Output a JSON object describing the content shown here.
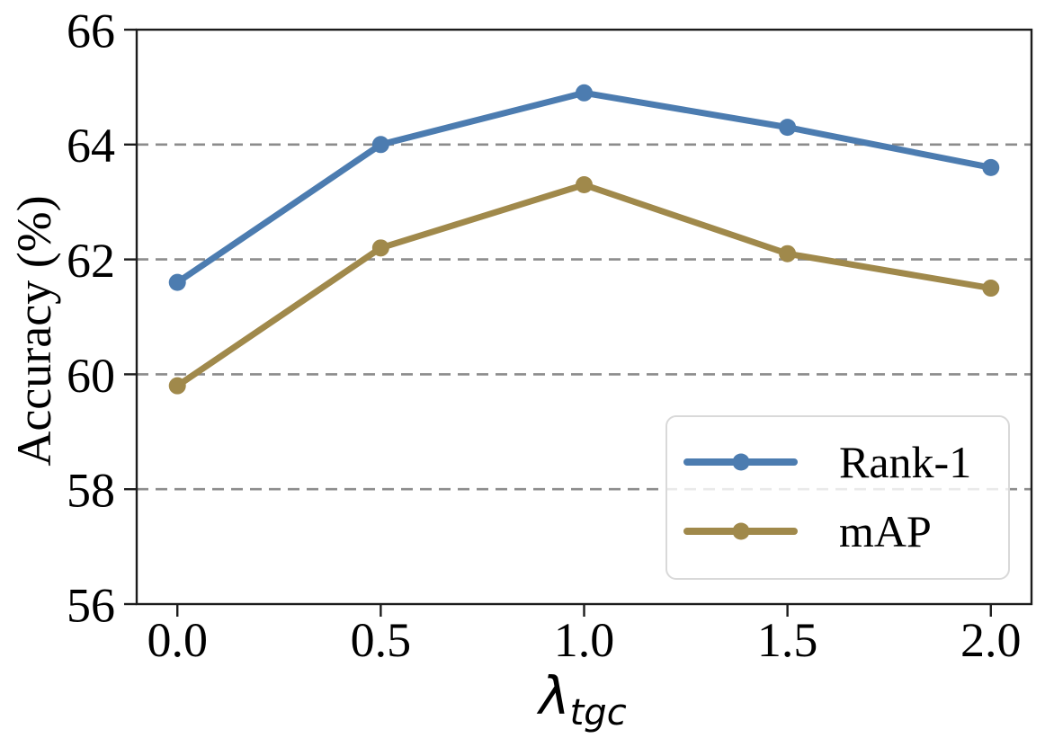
{
  "figure": {
    "background": "#ffffff"
  },
  "chart_data": {
    "type": "line",
    "title": "",
    "ylabel": "Accuracy (%)",
    "xlabel_symbol": "λ",
    "xlabel_subscript": "tgc",
    "x": [
      0.0,
      0.5,
      1.0,
      1.5,
      2.0
    ],
    "x_tick_labels": [
      "0.0",
      "0.5",
      "1.0",
      "1.5",
      "2.0"
    ],
    "y_ticks": [
      56,
      58,
      60,
      62,
      64,
      66
    ],
    "y_grid_lines": [
      58,
      60,
      62,
      64
    ],
    "xlim": [
      -0.1,
      2.1
    ],
    "ylim": [
      56,
      66
    ],
    "grid": true,
    "grid_color": "#8c8c8c",
    "axis_color": "#1c1c1c",
    "legend_position": "lower right",
    "series": [
      {
        "name": "Rank-1",
        "color": "#4c7cb0",
        "values": [
          61.6,
          64.0,
          64.9,
          64.3,
          63.6
        ]
      },
      {
        "name": "mAP",
        "color": "#a0894b",
        "values": [
          59.8,
          62.2,
          63.3,
          62.1,
          61.5
        ]
      }
    ]
  }
}
